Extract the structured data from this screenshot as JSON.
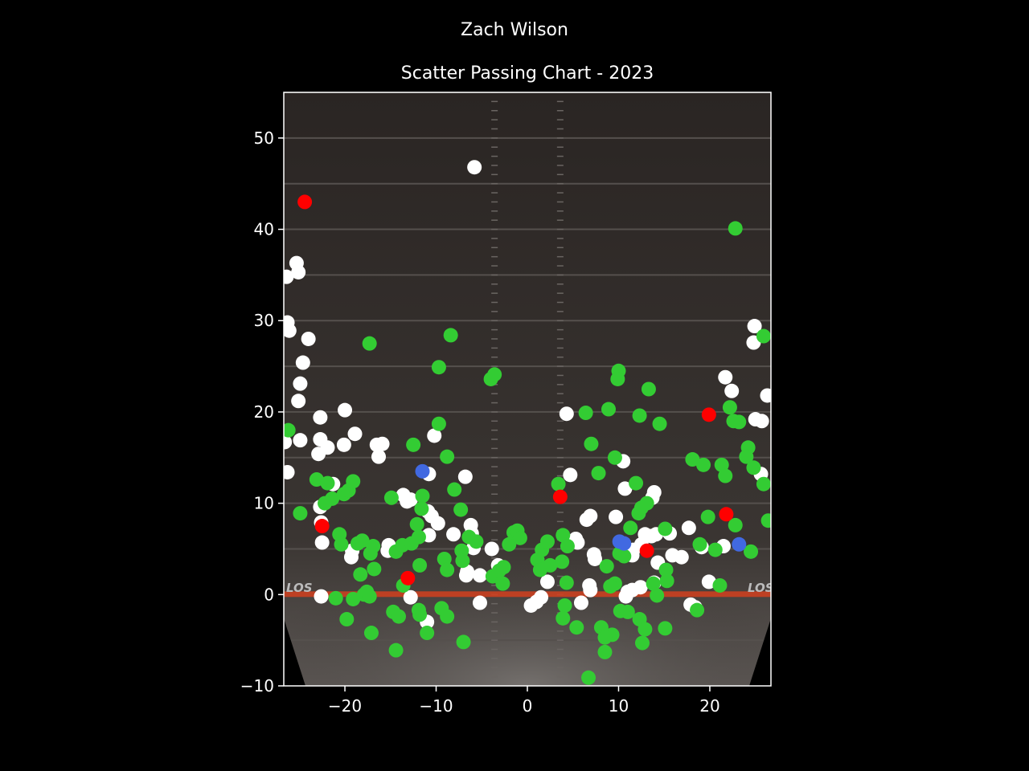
{
  "figure": {
    "suptitle": "Zach Wilson",
    "background_color": "#000000",
    "text_color": "#ffffff"
  },
  "chart_data": {
    "type": "scatter",
    "title": "Scatter Passing Chart - 2023",
    "xlabel": "",
    "ylabel": "",
    "xlim": [
      -26.7,
      26.7
    ],
    "ylim": [
      -10,
      55
    ],
    "xticks": [
      -20,
      -10,
      0,
      10,
      20
    ],
    "yticks": [
      -10,
      0,
      10,
      20,
      30,
      40,
      50
    ],
    "xtick_labels": [
      "−20",
      "−10",
      "0",
      "10",
      "20"
    ],
    "ytick_labels": [
      "−10",
      "0",
      "10",
      "20",
      "30",
      "40",
      "50"
    ],
    "grid": false,
    "legend": "none",
    "background": "football-field-image",
    "field_text": [
      "LOS",
      "LOS"
    ],
    "colors": {
      "complete": "#33cc33",
      "incomplete": "#ffffff",
      "interception": "#ff0000",
      "touchdown": "#4169e1",
      "line_of_scrimmage": "#d2401e"
    },
    "series": [
      {
        "color": "#ffffff",
        "points": [
          [
            -5.8,
            46.8
          ],
          [
            -26.4,
            34.8
          ],
          [
            -25.3,
            36.3
          ],
          [
            -25.1,
            35.3
          ],
          [
            -26.3,
            29.8
          ],
          [
            -26.1,
            28.9
          ],
          [
            -24,
            28
          ],
          [
            -24.6,
            25.4
          ],
          [
            -24.9,
            23.1
          ],
          [
            -25.1,
            21.2
          ],
          [
            -22.7,
            19.4
          ],
          [
            -20,
            20.2
          ],
          [
            -18.9,
            17.6
          ],
          [
            -26.6,
            16.7
          ],
          [
            -24.9,
            16.9
          ],
          [
            -22.7,
            17
          ],
          [
            -21.9,
            16.1
          ],
          [
            -22.9,
            15.4
          ],
          [
            -20.1,
            16.4
          ],
          [
            -16.5,
            16.4
          ],
          [
            -16.3,
            15.1
          ],
          [
            -15.9,
            16.5
          ],
          [
            -26.3,
            13.4
          ],
          [
            -21.3,
            12.1
          ],
          [
            -22.7,
            9.6
          ],
          [
            -22.6,
            7.9
          ],
          [
            -22.5,
            5.7
          ],
          [
            -19.2,
            4.8
          ],
          [
            -19.3,
            4.1
          ],
          [
            -15.2,
            5.4
          ],
          [
            -15.3,
            4.8
          ],
          [
            -13.6,
            10.9
          ],
          [
            -13.2,
            10.2
          ],
          [
            -12.8,
            10.4
          ],
          [
            -10.8,
            13.2
          ],
          [
            -10.9,
            9.1
          ],
          [
            -10.5,
            8.6
          ],
          [
            -9.8,
            7.8
          ],
          [
            -10.8,
            6.5
          ],
          [
            -8.1,
            6.6
          ],
          [
            -6.8,
            12.9
          ],
          [
            -6.2,
            7.6
          ],
          [
            -6.1,
            6.7
          ],
          [
            -5.9,
            5.1
          ],
          [
            -6.6,
            2.5
          ],
          [
            -6.7,
            2.1
          ],
          [
            -5.2,
            2.1
          ],
          [
            -10.2,
            17.4
          ],
          [
            -3.9,
            5.0
          ],
          [
            -3.2,
            3.2
          ],
          [
            -12.8,
            -0.3
          ],
          [
            -11,
            -3
          ],
          [
            -5.2,
            -0.9
          ],
          [
            -22.6,
            -0.2
          ],
          [
            0.4,
            -1.2
          ],
          [
            1,
            -0.8
          ],
          [
            1.5,
            -0.3
          ],
          [
            2.2,
            1.4
          ],
          [
            4.3,
            19.8
          ],
          [
            4.7,
            13.1
          ],
          [
            5.3,
            6.1
          ],
          [
            5.5,
            5.7
          ],
          [
            6.5,
            8.2
          ],
          [
            6.9,
            8.6
          ],
          [
            7.3,
            4.4
          ],
          [
            7.4,
            3.9
          ],
          [
            6.8,
            1
          ],
          [
            6.9,
            0.5
          ],
          [
            5.9,
            -0.9
          ],
          [
            10.5,
            14.6
          ],
          [
            10.7,
            11.6
          ],
          [
            13.9,
            11.2
          ],
          [
            13.7,
            10.6
          ],
          [
            9.7,
            8.5
          ],
          [
            12.5,
            5.5
          ],
          [
            12.9,
            6.6
          ],
          [
            13.6,
            6.4
          ],
          [
            14.1,
            6.6
          ],
          [
            15.6,
            6.7
          ],
          [
            11.5,
            4.3
          ],
          [
            11.6,
            4.9
          ],
          [
            14.3,
            3.5
          ],
          [
            15.9,
            4.3
          ],
          [
            16.9,
            4.1
          ],
          [
            17.7,
            7.3
          ],
          [
            19.1,
            5.2
          ],
          [
            19.9,
            1.4
          ],
          [
            21.5,
            5.3
          ],
          [
            13.9,
            1.3
          ],
          [
            12.4,
            0.8
          ],
          [
            11.5,
            0.5
          ],
          [
            11,
            0.3
          ],
          [
            10.8,
            -0.2
          ],
          [
            17.9,
            -1.1
          ],
          [
            18.4,
            -1.4
          ],
          [
            21.7,
            23.8
          ],
          [
            22.4,
            22.3
          ],
          [
            24.9,
            29.4
          ],
          [
            24.8,
            27.6
          ],
          [
            26.3,
            21.8
          ],
          [
            25,
            19.2
          ],
          [
            25.7,
            19
          ],
          [
            25.6,
            13.2
          ]
        ]
      },
      {
        "color": "#33cc33",
        "points": [
          [
            22.8,
            40.1
          ],
          [
            -8.4,
            28.4
          ],
          [
            -17.3,
            27.5
          ],
          [
            -9.7,
            24.9
          ],
          [
            -4,
            23.6
          ],
          [
            -3.6,
            24.1
          ],
          [
            -26.2,
            18
          ],
          [
            -9.7,
            18.7
          ],
          [
            -12.5,
            16.4
          ],
          [
            -8.8,
            15.1
          ],
          [
            -23.1,
            12.6
          ],
          [
            -21.9,
            12.2
          ],
          [
            -21.4,
            10.5
          ],
          [
            -20.1,
            11
          ],
          [
            -19.6,
            11.4
          ],
          [
            -19.1,
            12.4
          ],
          [
            -24.9,
            8.9
          ],
          [
            -22.2,
            10
          ],
          [
            -14.9,
            10.6
          ],
          [
            -12.1,
            7.7
          ],
          [
            -11.5,
            10.8
          ],
          [
            -11.6,
            9.4
          ],
          [
            -8,
            11.5
          ],
          [
            -7.3,
            9.3
          ],
          [
            -20.6,
            6.6
          ],
          [
            -20.4,
            5.5
          ],
          [
            -18.6,
            5.6
          ],
          [
            -18.1,
            5.9
          ],
          [
            -17.2,
            4.5
          ],
          [
            -16.9,
            5.3
          ],
          [
            -16.8,
            2.8
          ],
          [
            -18.3,
            2.2
          ],
          [
            -14.4,
            4.7
          ],
          [
            -13.7,
            5.4
          ],
          [
            -12.7,
            5.6
          ],
          [
            -11.9,
            6.3
          ],
          [
            -9.1,
            3.9
          ],
          [
            -8.8,
            2.7
          ],
          [
            -7.2,
            4.8
          ],
          [
            -7.1,
            3.7
          ],
          [
            -6.4,
            6.3
          ],
          [
            -5.6,
            5.8
          ],
          [
            -3.8,
            2
          ],
          [
            -3.1,
            2.6
          ],
          [
            -2.6,
            3
          ],
          [
            -2.7,
            1.2
          ],
          [
            -2,
            5.5
          ],
          [
            -1.5,
            6.8
          ],
          [
            -1.1,
            7
          ],
          [
            -0.8,
            6.2
          ],
          [
            -11.8,
            3.2
          ],
          [
            -13.6,
            1
          ],
          [
            -14.7,
            -1.9
          ],
          [
            -14.1,
            -2.4
          ],
          [
            -11.9,
            -1.7
          ],
          [
            -11.8,
            -2.2
          ],
          [
            -9.4,
            -1.5
          ],
          [
            -8.8,
            -2.4
          ],
          [
            -17.1,
            -4.2
          ],
          [
            -14.4,
            -6.1
          ],
          [
            -11,
            -4.2
          ],
          [
            -7,
            -5.2
          ],
          [
            -19.8,
            -2.7
          ],
          [
            -21,
            -0.4
          ],
          [
            -19.1,
            -0.5
          ],
          [
            -17.9,
            0
          ],
          [
            -17.6,
            0.3
          ],
          [
            -17.3,
            -0.2
          ],
          [
            1.1,
            3.8
          ],
          [
            1.4,
            2.7
          ],
          [
            1.6,
            4.9
          ],
          [
            2.2,
            5.8
          ],
          [
            2.5,
            3.2
          ],
          [
            3.4,
            12.1
          ],
          [
            3.9,
            6.5
          ],
          [
            4.4,
            5.3
          ],
          [
            3.8,
            3.6
          ],
          [
            4.3,
            1.3
          ],
          [
            4.1,
            -1.2
          ],
          [
            3.9,
            -2.6
          ],
          [
            5.4,
            -3.6
          ],
          [
            6.4,
            19.9
          ],
          [
            7,
            16.5
          ],
          [
            7.8,
            13.3
          ],
          [
            8.9,
            20.3
          ],
          [
            9.6,
            15
          ],
          [
            10,
            24.5
          ],
          [
            9.9,
            23.6
          ],
          [
            11.9,
            12.2
          ],
          [
            11.3,
            7.3
          ],
          [
            12.2,
            8.9
          ],
          [
            12.5,
            9.5
          ],
          [
            13.1,
            10
          ],
          [
            12.3,
            19.6
          ],
          [
            13.3,
            22.5
          ],
          [
            14.5,
            18.7
          ],
          [
            9.6,
            1.2
          ],
          [
            8.7,
            3.1
          ],
          [
            10.1,
            4.5
          ],
          [
            10.6,
            4.2
          ],
          [
            9.1,
            0.9
          ],
          [
            10.2,
            -1.8
          ],
          [
            11,
            -1.9
          ],
          [
            12.3,
            -2.7
          ],
          [
            12.9,
            -3.8
          ],
          [
            12.6,
            -5.3
          ],
          [
            14.2,
            -0.1
          ],
          [
            15.1,
            -3.7
          ],
          [
            9.3,
            -4.4
          ],
          [
            8.1,
            -3.6
          ],
          [
            8.5,
            -4.7
          ],
          [
            8.5,
            -6.3
          ],
          [
            6.7,
            -9.1
          ],
          [
            13.8,
            1.2
          ],
          [
            15.3,
            1.5
          ],
          [
            15.2,
            2.7
          ],
          [
            15.1,
            7.2
          ],
          [
            18.1,
            14.8
          ],
          [
            19.3,
            14.2
          ],
          [
            19.8,
            8.5
          ],
          [
            18.9,
            5.5
          ],
          [
            18.6,
            -1.7
          ],
          [
            20.6,
            4.9
          ],
          [
            21.1,
            1
          ],
          [
            21.3,
            14.2
          ],
          [
            21.7,
            13
          ],
          [
            22.2,
            20.5
          ],
          [
            22.6,
            19
          ],
          [
            23.2,
            18.9
          ],
          [
            24.2,
            16.1
          ],
          [
            24,
            15.1
          ],
          [
            24.8,
            13.9
          ],
          [
            25.9,
            12.1
          ],
          [
            26.4,
            8.1
          ],
          [
            24.5,
            4.7
          ],
          [
            25.9,
            28.3
          ],
          [
            22.8,
            7.6
          ]
        ]
      },
      {
        "color": "#ff0000",
        "points": [
          [
            -24.4,
            43
          ],
          [
            -22.5,
            7.5
          ],
          [
            -13.1,
            1.8
          ],
          [
            3.6,
            10.7
          ],
          [
            13.1,
            4.8
          ],
          [
            19.9,
            19.7
          ],
          [
            21.8,
            8.8
          ]
        ]
      },
      {
        "color": "#4169e1",
        "points": [
          [
            -11.5,
            13.5
          ],
          [
            10.1,
            5.8
          ],
          [
            10.6,
            5.6
          ],
          [
            23.2,
            5.5
          ]
        ]
      }
    ]
  }
}
